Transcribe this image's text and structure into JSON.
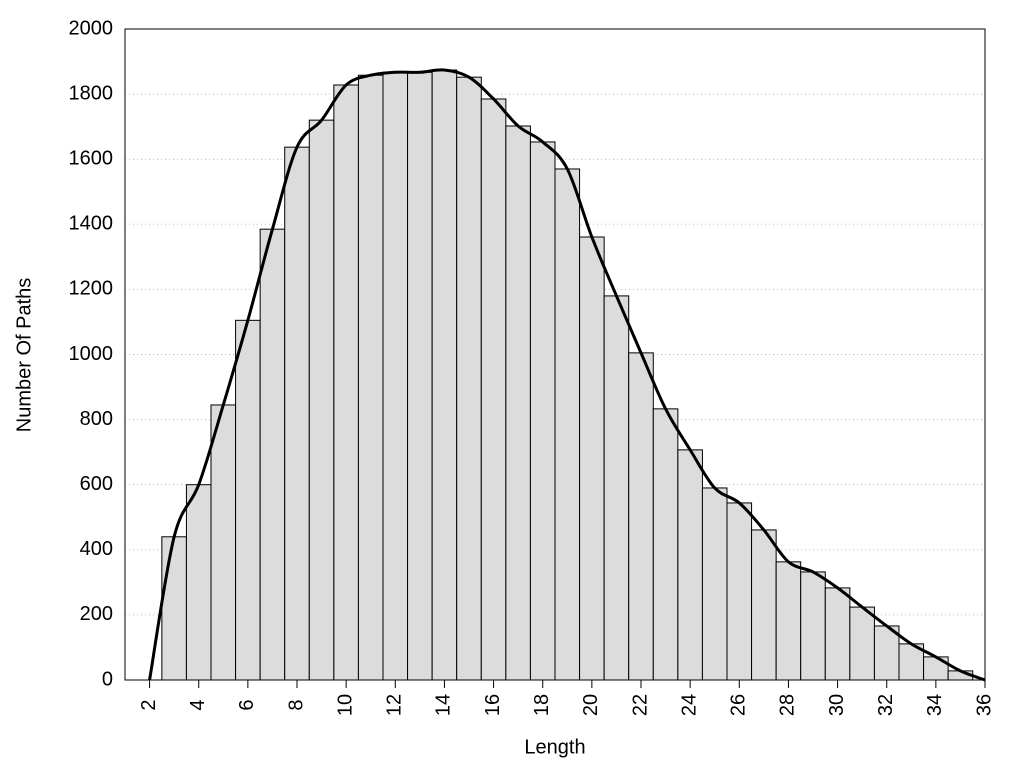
{
  "chart_data": {
    "type": "histogram",
    "xlabel": "Length",
    "ylabel": "Number Of Paths",
    "bins": [
      2.5,
      3.5,
      4.5,
      5.5,
      6.5,
      7.5,
      8.5,
      9.5,
      10.5,
      11.5,
      12.5,
      13.5,
      14.5,
      15.5,
      16.5,
      17.5,
      18.5,
      19.5,
      20.5,
      21.5,
      22.5,
      23.5,
      24.5,
      25.5,
      26.5,
      27.5,
      28.5,
      29.5,
      30.5,
      31.5,
      32.5,
      33.5,
      34.5,
      35.5
    ],
    "values": [
      440,
      600,
      845,
      1105,
      1385,
      1637,
      1720,
      1828,
      1858,
      1867,
      1867,
      1874,
      1852,
      1785,
      1702,
      1653,
      1570,
      1361,
      1180,
      1005,
      833,
      707,
      590,
      544,
      461,
      363,
      332,
      283,
      224,
      166,
      111,
      71,
      28
    ],
    "color": "#dcdcdc",
    "overlay": {
      "type": "line",
      "color": "#000000",
      "x": [
        2,
        3,
        4,
        5,
        6,
        7,
        8,
        9,
        10,
        11,
        12,
        13,
        14,
        15,
        16,
        17,
        18,
        19,
        20,
        21,
        22,
        23,
        24,
        25,
        26,
        27,
        28,
        29,
        30,
        31,
        32,
        33,
        34,
        35,
        36
      ],
      "values": [
        0,
        440,
        600,
        845,
        1105,
        1385,
        1637,
        1720,
        1828,
        1858,
        1867,
        1867,
        1874,
        1852,
        1785,
        1702,
        1653,
        1570,
        1361,
        1180,
        1005,
        833,
        707,
        590,
        544,
        461,
        363,
        332,
        283,
        224,
        166,
        111,
        71,
        28,
        0
      ]
    },
    "xlim": [
      1,
      36
    ],
    "xticks": [
      2,
      4,
      6,
      8,
      10,
      12,
      14,
      16,
      18,
      20,
      22,
      24,
      26,
      28,
      30,
      32,
      34,
      36
    ],
    "ylim": [
      0,
      2000
    ],
    "yticks": [
      0,
      200,
      400,
      600,
      800,
      1000,
      1200,
      1400,
      1600,
      1800,
      2000
    ],
    "grid": true
  }
}
